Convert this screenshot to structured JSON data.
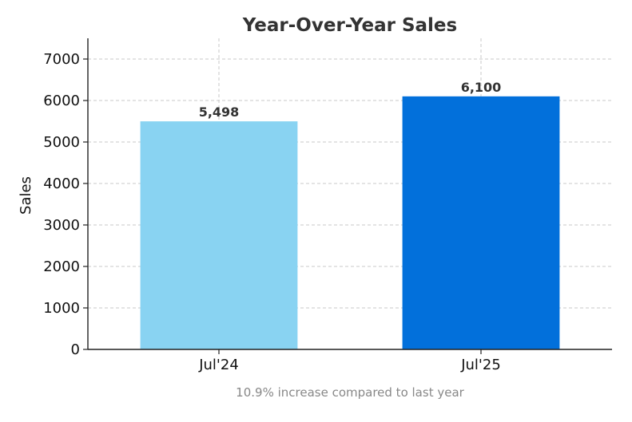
{
  "chart_data": {
    "type": "bar",
    "title": "Year-Over-Year Sales",
    "xlabel": "",
    "ylabel": "Sales",
    "categories": [
      "Jul'24",
      "Jul'25"
    ],
    "values": [
      5498,
      6100
    ],
    "data_labels": [
      "5,498",
      "6,100"
    ],
    "colors": [
      "#89d3f2",
      "#0270db"
    ],
    "ylim": [
      0,
      7500
    ],
    "yticks": [
      0,
      1000,
      2000,
      3000,
      4000,
      5000,
      6000,
      7000
    ],
    "grid": true,
    "caption": "10.9% increase compared to last year"
  }
}
